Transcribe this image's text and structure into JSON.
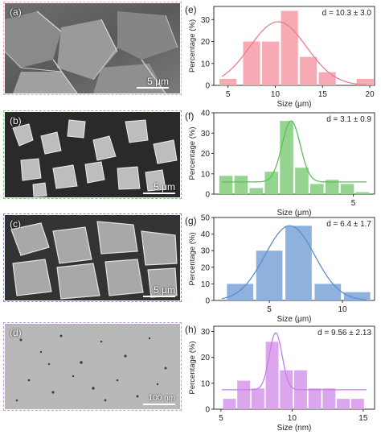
{
  "sem_panels": [
    {
      "letter": "(a)",
      "scale_label": "5 μm",
      "frame_color": "#f2a9b6"
    },
    {
      "letter": "(b)",
      "scale_label": "5 μm",
      "frame_color": "#7fce7b"
    },
    {
      "letter": "(c)",
      "scale_label": "5 μm",
      "frame_color": "#7a94c7"
    },
    {
      "letter": "(d)",
      "scale_label": "100 nm",
      "frame_color": "#c79ae6"
    }
  ],
  "chart_data": [
    {
      "type": "bar",
      "panel_label": "(e)",
      "stat_label": "d = 10.3 ± 3.0",
      "xlabel": "Size (μm)",
      "ylabel": "Percentage (%)",
      "bar_color": "#f7aab3",
      "line_color": "#f07c8c",
      "xlim": [
        3.5,
        20.5
      ],
      "ylim": [
        0,
        36
      ],
      "xticks": [
        5,
        10,
        15,
        20
      ],
      "yticks": [
        0,
        10,
        20,
        30
      ],
      "bin_width": 1.8,
      "x": [
        5,
        7.5,
        9.5,
        11.5,
        13.5,
        15.5,
        19.5
      ],
      "values": [
        3,
        20,
        20,
        34,
        13,
        6,
        3
      ],
      "fit": {
        "mean": 10.3,
        "sd": 3.0,
        "base": 0,
        "amp": 29
      }
    },
    {
      "type": "bar",
      "panel_label": "(f)",
      "stat_label": "d = 3.1 ± 0.9",
      "xlabel": "Size (μm)",
      "ylabel": "Percentage (%)",
      "bar_color": "#95d48e",
      "line_color": "#5cbf58",
      "xlim": [
        0.4,
        5.7
      ],
      "ylim": [
        0,
        40
      ],
      "xticks": [
        5
      ],
      "yticks": [
        0,
        10,
        20,
        30,
        40
      ],
      "bin_width": 0.44,
      "x": [
        0.8,
        1.3,
        1.8,
        2.3,
        2.8,
        3.3,
        3.8,
        4.3,
        4.8,
        5.3
      ],
      "values": [
        9,
        9,
        3,
        11,
        36,
        13,
        5,
        7,
        5,
        1
      ],
      "fit": {
        "mean": 2.95,
        "sd": 0.3,
        "base": 6,
        "amp": 30
      }
    },
    {
      "type": "bar",
      "panel_label": "(g)",
      "stat_label": "d = 6.4 ± 1.7",
      "xlabel": "Size (μm)",
      "ylabel": "Percentage (%)",
      "bar_color": "#8eb1dd",
      "line_color": "#5a8fce",
      "xlim": [
        1.2,
        12.2
      ],
      "ylim": [
        0,
        50
      ],
      "xticks": [
        5,
        10
      ],
      "yticks": [
        0,
        10,
        20,
        30,
        40,
        50
      ],
      "bin_width": 1.8,
      "x": [
        3,
        5,
        7,
        9,
        11
      ],
      "values": [
        10,
        30,
        45,
        10,
        5
      ],
      "fit": {
        "mean": 6.4,
        "sd": 1.7,
        "base": 0,
        "amp": 45
      }
    },
    {
      "type": "bar",
      "panel_label": "(h)",
      "stat_label": "d = 9.56 ± 2.13",
      "xlabel": "Size (nm)",
      "ylabel": "Percentage (%)",
      "bar_color": "#dca6ee",
      "line_color": "#c77ce6",
      "xlim": [
        4.5,
        15.8
      ],
      "ylim": [
        0,
        32
      ],
      "xticks": [
        5,
        10,
        15
      ],
      "yticks": [
        0,
        10,
        20,
        30
      ],
      "bin_width": 0.9,
      "x": [
        5.6,
        6.6,
        7.6,
        8.6,
        9.6,
        10.6,
        11.6,
        12.6,
        13.6,
        14.6
      ],
      "values": [
        4,
        11,
        8,
        26,
        15,
        15,
        8,
        8,
        4,
        4
      ],
      "fit": {
        "mean": 8.85,
        "sd": 0.45,
        "base": 7.5,
        "amp": 22
      }
    }
  ]
}
